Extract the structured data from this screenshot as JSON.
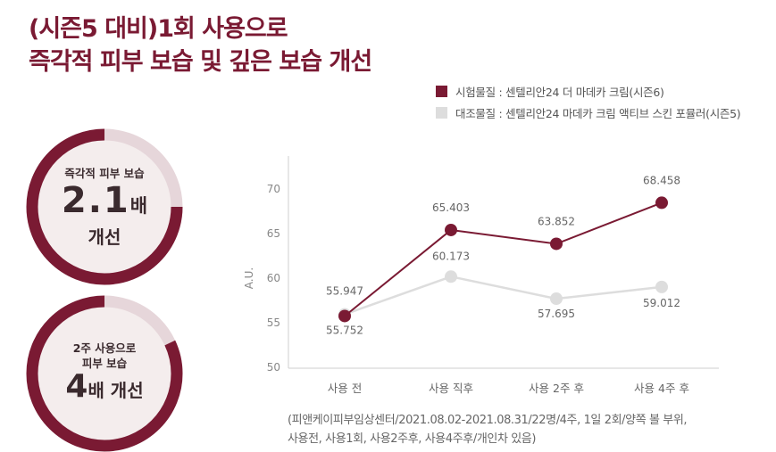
{
  "title": {
    "line1": "(시즌5 대비)1회 사용으로",
    "line2": "즉각적 피부 보습 및 깊은 보습 개선"
  },
  "badges": [
    {
      "line1": "즉각적 피부 보습",
      "value": "2.1",
      "unit": "배",
      "line3": "개선",
      "ring_fraction": 0.75
    },
    {
      "line1": "2주 사용으로",
      "line2": "피부 보습",
      "value": "4",
      "suffix": "배 개선",
      "ring_fraction": 0.82
    }
  ],
  "colors": {
    "accent": "#7a1a33",
    "control": "#dddddd",
    "ring_light": "#e6d6da",
    "badge_bg": "#f4eded"
  },
  "chart_data": {
    "type": "line",
    "categories": [
      "사용 전",
      "사용 직후",
      "사용 2주 후",
      "사용 4주 후"
    ],
    "ylabel": "A.U.",
    "ylim": [
      50,
      70
    ],
    "yticks": [
      50,
      55,
      60,
      65,
      70
    ],
    "grid": false,
    "legend_position": "top-right",
    "series": [
      {
        "name": "시험물질 : 센텔리안24 더 마데카 크림(시즌6)",
        "values": [
          55.752,
          65.403,
          63.852,
          68.458
        ],
        "labels": [
          "55.752",
          "65.403",
          "63.852",
          "68.458"
        ],
        "color": "#7a1a33"
      },
      {
        "name": "대조물질 : 센텔리안24 마데카 크림 액티브 스킨 포뮬러(시즌5)",
        "values": [
          55.947,
          60.173,
          57.695,
          59.012
        ],
        "labels": [
          "55.947",
          "60.173",
          "57.695",
          "59.012"
        ],
        "color": "#dddddd"
      }
    ]
  },
  "footnote": {
    "line1": "(피앤케이피부임상센터/2021.08.02-2021.08.31/22명/4주, 1일  2회/양쪽 볼 부위,",
    "line2": "사용전, 사용1회, 사용2주후, 사용4주후/개인차 있음)"
  }
}
